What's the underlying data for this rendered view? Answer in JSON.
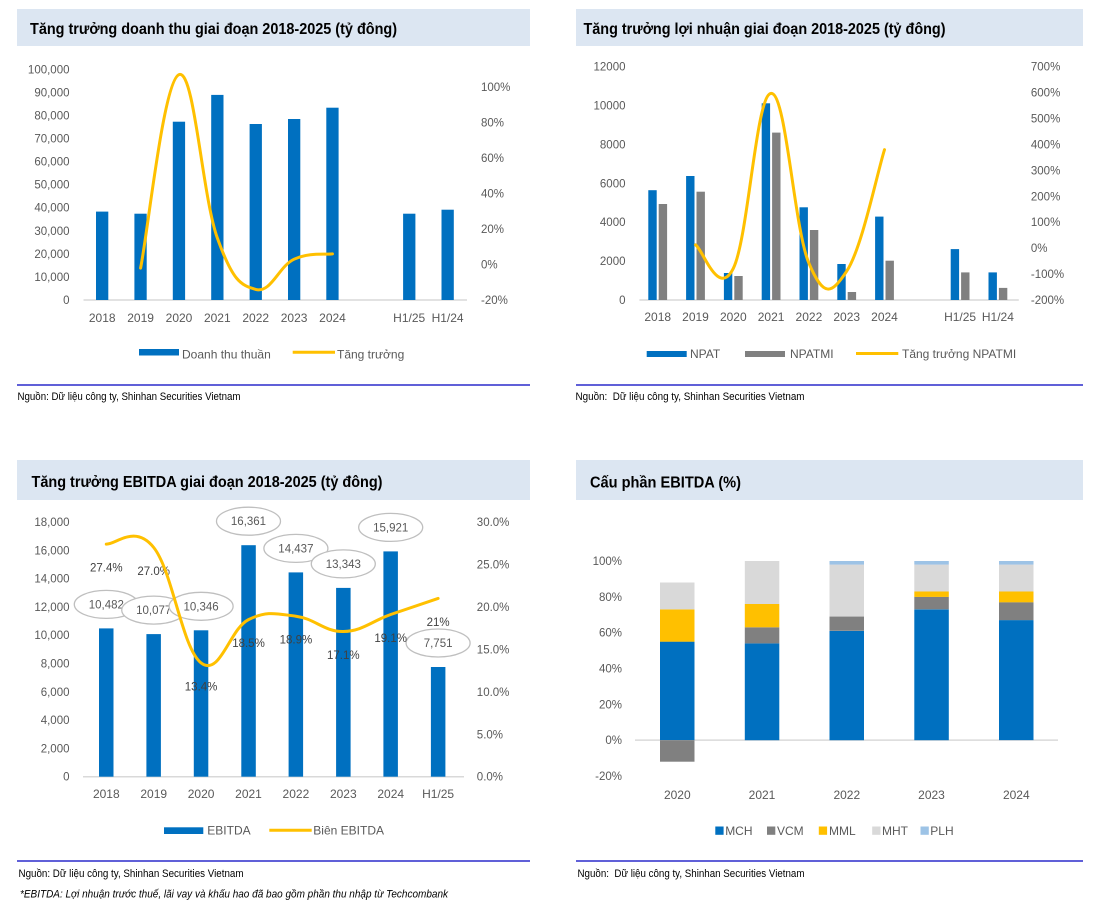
{
  "theme": {
    "header_bg": "#DCE6F2",
    "divider": "#0000C0",
    "axis_text": "#595959",
    "axis_line": "#D9D9D9",
    "label_ellipse": "#BFBFBF",
    "label_text": "#404040"
  },
  "chart_data": [
    {
      "id": "revenue-growth",
      "type": "bar+line",
      "title": "Tăng trưởng doanh thu giai đoạn 2018-2025 (tỷ đông)",
      "categories": [
        "2018",
        "2019",
        "2020",
        "2021",
        "2022",
        "2023",
        "2024",
        "",
        "H1/25",
        "H1/24"
      ],
      "series": [
        {
          "name": "Doanh thu thuần",
          "type": "bar",
          "axis": "left",
          "color": "#0070C0",
          "values": [
            38300,
            37400,
            77300,
            88900,
            76300,
            78450,
            83350,
            null,
            37400,
            39150
          ]
        },
        {
          "name": "Tăng trưởng",
          "type": "line",
          "axis": "right",
          "color": "#FFC000",
          "unit": "%",
          "smooth": true,
          "values": [
            null,
            -2,
            107,
            15,
            -14,
            3,
            6,
            null,
            null,
            null
          ]
        }
      ],
      "y_left": {
        "min": 0,
        "max": 100000,
        "ticks": [
          0,
          10000,
          20000,
          30000,
          40000,
          50000,
          60000,
          70000,
          80000,
          90000,
          100000
        ],
        "tick_labels": [
          "0",
          "10,000",
          "20,000",
          "30,000",
          "40,000",
          "50,000",
          "60,000",
          "70,000",
          "80,000",
          "90,000",
          "100,000"
        ]
      },
      "y_right": {
        "min": -20,
        "max": 110,
        "ticks": [
          -20,
          0,
          20,
          40,
          60,
          80,
          100
        ],
        "tick_labels": [
          "-20%",
          "0%",
          "20%",
          "40%",
          "60%",
          "80%",
          "100%"
        ]
      },
      "grid": false,
      "legend": {
        "position": "bottom"
      },
      "source": "Nguồn: Dữ liệu công ty, Shinhan Securities Vietnam"
    },
    {
      "id": "profit-growth",
      "type": "grouped-bar+line",
      "title": "Tăng trưởng lợi nhuận giai đoạn 2018-2025 (tỷ đông)",
      "categories": [
        "2018",
        "2019",
        "2020",
        "2021",
        "2022",
        "2023",
        "2024",
        "",
        "H1/25",
        "H1/24"
      ],
      "series": [
        {
          "name": "NPAT",
          "type": "bar",
          "axis": "left",
          "color": "#0070C0",
          "values": [
            5650,
            6380,
            1390,
            10120,
            4770,
            1850,
            4290,
            null,
            2620,
            1420
          ]
        },
        {
          "name": "NPATMI",
          "type": "bar",
          "axis": "left",
          "color": "#808080",
          "values": [
            4940,
            5570,
            1235,
            8610,
            3600,
            410,
            2020,
            null,
            1420,
            620
          ]
        },
        {
          "name": "Tăng trưởng NPATMI",
          "type": "line",
          "axis": "right",
          "color": "#FFC000",
          "unit": "%",
          "smooth": true,
          "values": [
            null,
            13,
            -78,
            597,
            -58,
            -89,
            380,
            null,
            null,
            null
          ]
        }
      ],
      "y_left": {
        "min": 0,
        "max": 12000,
        "ticks": [
          0,
          2000,
          4000,
          6000,
          8000,
          10000,
          12000
        ],
        "tick_labels": [
          "0",
          "2000",
          "4000",
          "6000",
          "8000",
          "10000",
          "12000"
        ]
      },
      "y_right": {
        "min": -200,
        "max": 700,
        "ticks": [
          -200,
          -100,
          0,
          100,
          200,
          300,
          400,
          500,
          600,
          700
        ],
        "tick_labels": [
          "-200%",
          "-100%",
          "0%",
          "100%",
          "200%",
          "300%",
          "400%",
          "500%",
          "600%",
          "700%"
        ]
      },
      "grid": false,
      "legend": {
        "position": "bottom"
      },
      "source": "Nguồn:  Dữ liệu công ty, Shinhan Securities Vietnam"
    },
    {
      "id": "ebitda-growth",
      "type": "bar+line",
      "title": "Tăng trưởng EBITDA giai đoạn 2018-2025 (tỷ đông)",
      "categories": [
        "2018",
        "2019",
        "2020",
        "2021",
        "2022",
        "2023",
        "2024",
        "H1/25"
      ],
      "series": [
        {
          "name": "EBITDA",
          "type": "bar",
          "axis": "left",
          "color": "#0070C0",
          "values": [
            10482,
            10077,
            10346,
            16361,
            14437,
            13343,
            15921,
            7751
          ]
        },
        {
          "name": "Biên EBITDA",
          "type": "line",
          "axis": "right",
          "color": "#FFC000",
          "unit": "%",
          "smooth": true,
          "values": [
            27.4,
            27.0,
            13.4,
            18.5,
            18.9,
            17.1,
            19.1,
            21.0
          ]
        }
      ],
      "data_labels": {
        "bar": [
          "10,482",
          "10,077",
          "10,346",
          "16,361",
          "14,437",
          "13,343",
          "15,921",
          "7,751"
        ],
        "line": [
          "27.4%",
          "27.0%",
          "13.4%",
          "18.5%",
          "18.9%",
          "17.1%",
          "19.1%",
          "21%"
        ]
      },
      "y_left": {
        "min": 0,
        "max": 18000,
        "ticks": [
          0,
          2000,
          4000,
          6000,
          8000,
          10000,
          12000,
          14000,
          16000,
          18000
        ],
        "tick_labels": [
          "0",
          "2,000",
          "4,000",
          "6,000",
          "8,000",
          "10,000",
          "12,000",
          "14,000",
          "16,000",
          "18,000"
        ]
      },
      "y_right": {
        "min": 0,
        "max": 30,
        "ticks": [
          0,
          5,
          10,
          15,
          20,
          25,
          30
        ],
        "tick_labels": [
          "0.0%",
          "5.0%",
          "10.0%",
          "15.0%",
          "20.0%",
          "25.0%",
          "30.0%"
        ]
      },
      "grid": false,
      "legend": {
        "position": "bottom"
      },
      "source": "Nguồn: Dữ liệu công ty, Shinhan Securities Vietnam",
      "note": "*EBITDA: Lợi nhuận trước thuế, lãi vay và khấu hao đã bao gồm phần thu nhập từ Techcombank"
    },
    {
      "id": "ebitda-mix",
      "type": "stacked-bar",
      "title": "Cấu phần EBITDA (%)",
      "categories": [
        "2020",
        "2021",
        "2022",
        "2023",
        "2024"
      ],
      "series": [
        {
          "name": "MCH",
          "type": "bar",
          "color": "#0070C0",
          "values": [
            55,
            54,
            61,
            73,
            67
          ]
        },
        {
          "name": "VCM",
          "type": "bar",
          "color": "#808080",
          "values": [
            -12,
            9,
            8,
            7,
            10
          ]
        },
        {
          "name": "MML",
          "type": "bar",
          "color": "#FFC000",
          "values": [
            18,
            13,
            0,
            3,
            6
          ]
        },
        {
          "name": "MHT",
          "type": "bar",
          "color": "#D9D9D9",
          "values": [
            15,
            24,
            29,
            15,
            15
          ]
        },
        {
          "name": "PLH",
          "type": "bar",
          "color": "#9DC3E6",
          "values": [
            0,
            0,
            2,
            2,
            2
          ]
        }
      ],
      "y_left": {
        "min": -20,
        "max": 100,
        "ticks": [
          -20,
          0,
          20,
          40,
          60,
          80,
          100
        ],
        "tick_labels": [
          "-20%",
          "0%",
          "20%",
          "40%",
          "60%",
          "80%",
          "100%"
        ]
      },
      "grid": false,
      "legend": {
        "position": "bottom"
      },
      "source": "Nguồn:  Dữ liệu công ty, Shinhan Securities Vietnam"
    }
  ]
}
